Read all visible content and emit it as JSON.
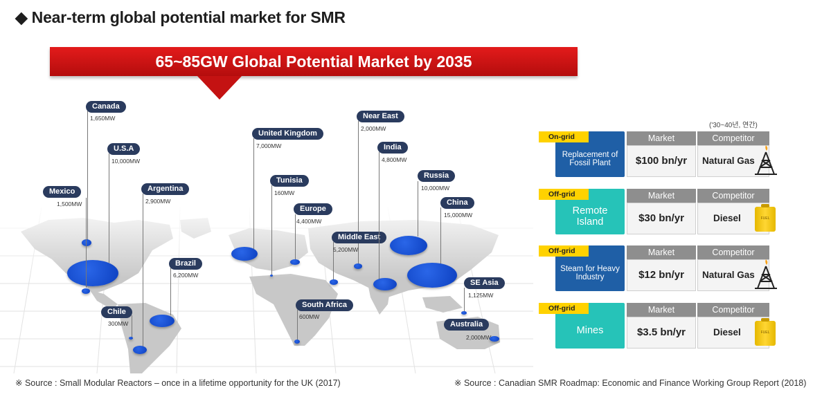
{
  "title": "◆ Near-term global potential market for SMR",
  "banner": "65~85GW Global Potential Market by 2035",
  "sources": {
    "left": "※ Source : Small Modular Reactors – once in a lifetime opportunity for the UK (2017)",
    "right": "※ Source : Canadian SMR Roadmap: Economic and Finance Working Group Report (2018)"
  },
  "markets": [
    {
      "name": "Canada",
      "value": "1,650MW"
    },
    {
      "name": "U.S.A",
      "value": "10,000MW"
    },
    {
      "name": "Mexico",
      "value": "1,500MW"
    },
    {
      "name": "Argentina",
      "value": "2,900MW"
    },
    {
      "name": "Brazil",
      "value": "6,200MW"
    },
    {
      "name": "Chile",
      "value": "300MW"
    },
    {
      "name": "United Kingdom",
      "value": "7,000MW"
    },
    {
      "name": "Tunisia",
      "value": "160MW"
    },
    {
      "name": "Europe",
      "value": "4,400MW"
    },
    {
      "name": "South Africa",
      "value": "600MW"
    },
    {
      "name": "Near East",
      "value": "2,000MW"
    },
    {
      "name": "India",
      "value": "4,800MW"
    },
    {
      "name": "Middle East",
      "value": "5,200MW"
    },
    {
      "name": "Russia",
      "value": "10,000MW"
    },
    {
      "name": "China",
      "value": "15,000MW"
    },
    {
      "name": "SE Asia",
      "value": "1,125MW"
    },
    {
      "name": "Australia",
      "value": "2,000MW"
    }
  ],
  "table_note": "('30~40년, 연간)",
  "table_headers": {
    "market": "Market",
    "competitor": "Competitor"
  },
  "segments": [
    {
      "grid": "On-grid",
      "label": "Replacement of Fossil Plant",
      "market": "$100 bn/yr",
      "competitor": "Natural Gas",
      "icon": "gas-rig-icon",
      "color": "#1f5fa6"
    },
    {
      "grid": "Off-grid",
      "label": "Remote Island",
      "market": "$30 bn/yr",
      "competitor": "Diesel",
      "icon": "fuel-can-icon",
      "color": "#26c3b8"
    },
    {
      "grid": "Off-grid",
      "label": "Steam for Heavy Industry",
      "market": "$12 bn/yr",
      "competitor": "Natural Gas",
      "icon": "gas-rig-icon",
      "color": "#1f5fa6"
    },
    {
      "grid": "Off-grid",
      "label": "Mines",
      "market": "$3.5 bn/yr",
      "competitor": "Diesel",
      "icon": "fuel-can-icon",
      "color": "#26c3b8"
    }
  ],
  "fuel_can_text": "FUEL"
}
